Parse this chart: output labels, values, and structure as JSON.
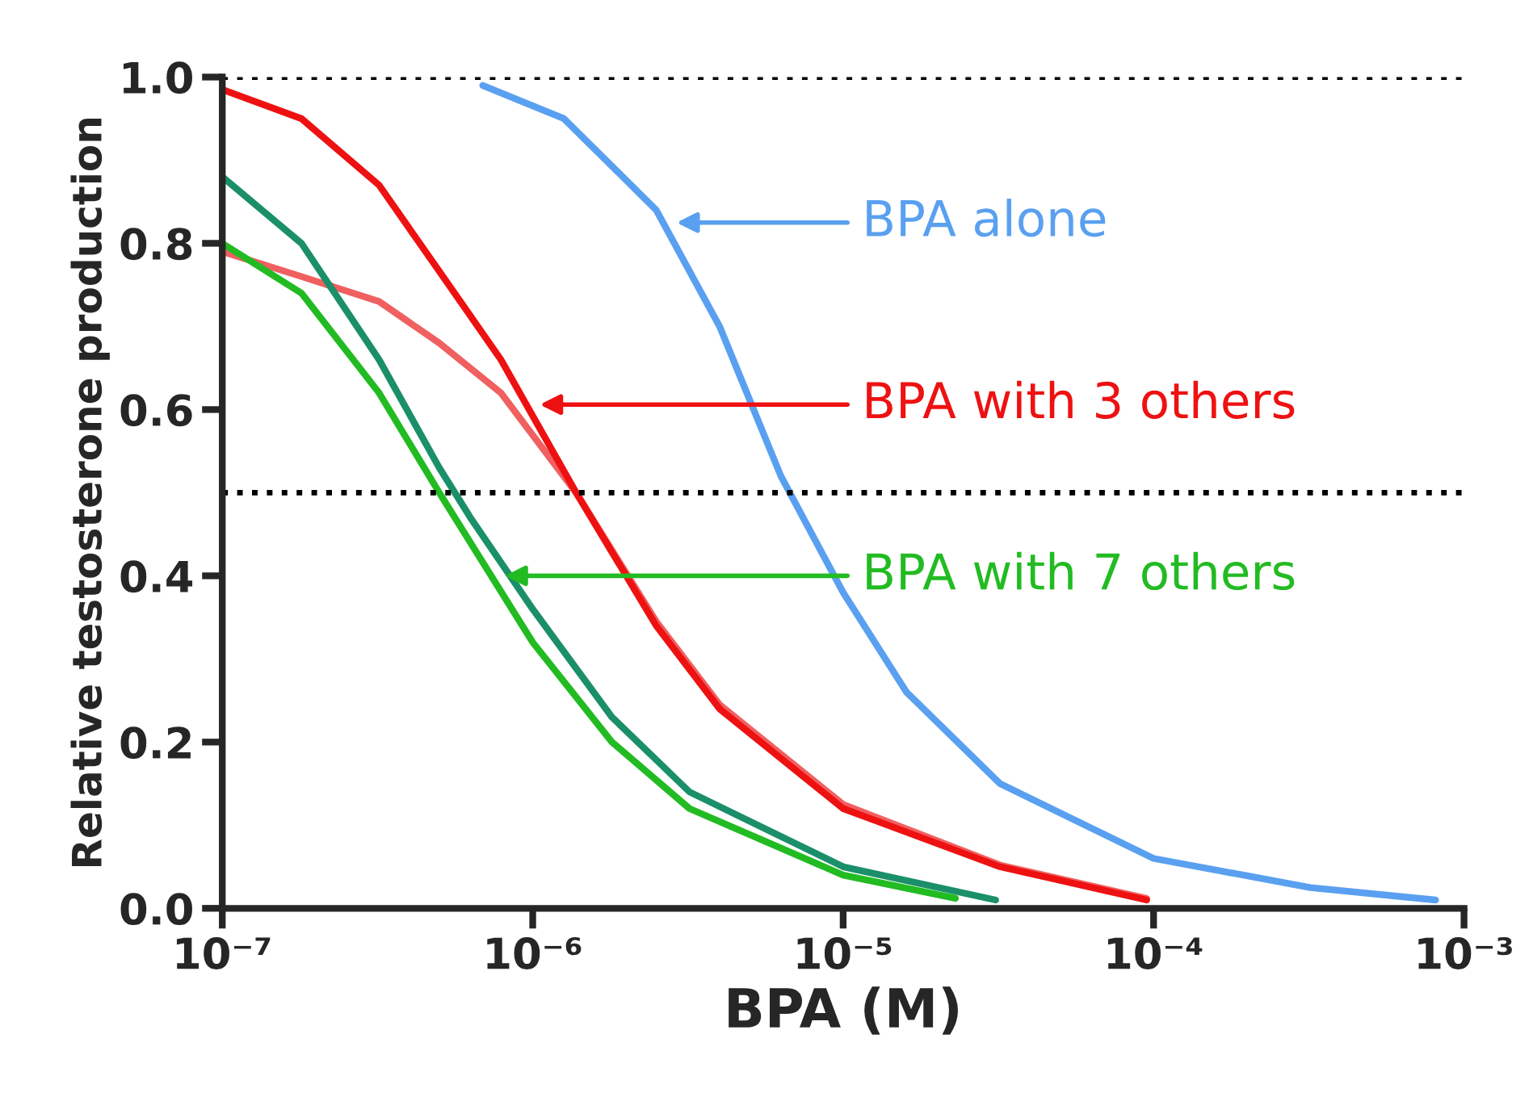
{
  "chart_data": {
    "type": "line",
    "xlabel": "BPA (M)",
    "ylabel": "Relative testosterone production",
    "log": "x",
    "xlim": [
      1e-07,
      0.001
    ],
    "xticks": [
      {
        "value": 1e-07,
        "label": "10⁻⁷"
      },
      {
        "value": 1e-06,
        "label": "10⁻⁶"
      },
      {
        "value": 1e-05,
        "label": "10⁻⁵"
      },
      {
        "value": 0.0001,
        "label": "10⁻⁴"
      },
      {
        "value": 0.001,
        "label": "10⁻³"
      }
    ],
    "ylim": [
      0,
      1.0
    ],
    "yticks": [
      {
        "value": 0,
        "label": "0.0"
      },
      {
        "value": 0.2,
        "label": "0.2"
      },
      {
        "value": 0.4,
        "label": "0.4"
      },
      {
        "value": 0.6,
        "label": "0.6"
      },
      {
        "value": 0.8,
        "label": "0.8"
      },
      {
        "value": 1.0,
        "label": "1.0"
      }
    ],
    "grid": false,
    "legend": "right",
    "marker": "none",
    "line_style": "solid",
    "ref_lines": [
      {
        "axis": "y",
        "value": 1.0,
        "label": null,
        "color": "#000000",
        "line_style": "dotted"
      },
      {
        "axis": "y",
        "value": 0.5,
        "label": null,
        "color": "#000000",
        "line_style": "dotted"
      }
    ],
    "series": [
      {
        "name": "BPA alone",
        "color": "#5aa0f0",
        "x": [
          6.9e-07,
          1.26e-06,
          2.5e-06,
          4e-06,
          6.3e-06,
          1e-05,
          1.6e-05,
          3.2e-05,
          0.0001,
          0.00032,
          0.00081
        ],
        "values": [
          0.99,
          0.95,
          0.84,
          0.7,
          0.52,
          0.38,
          0.26,
          0.15,
          0.06,
          0.025,
          0.01
        ]
      },
      {
        "color": "#f06060",
        "x": [
          1e-07,
          1.8e-07,
          3.2e-07,
          5e-07,
          7.9e-07,
          1.38e-06,
          2.5e-06,
          4e-06,
          1e-05,
          3.2e-05,
          9.5e-05
        ],
        "values": [
          0.79,
          0.76,
          0.73,
          0.68,
          0.62,
          0.5,
          0.345,
          0.245,
          0.125,
          0.052,
          0.012
        ]
      },
      {
        "name": "BPA with 3 others",
        "color": "#ee1111",
        "x": [
          1e-07,
          1.8e-07,
          3.2e-07,
          5.6e-07,
          7.9e-07,
          1.38e-06,
          2.5e-06,
          4e-06,
          1e-05,
          3.2e-05,
          9.5e-05
        ],
        "values": [
          0.985,
          0.95,
          0.87,
          0.74,
          0.66,
          0.5,
          0.34,
          0.24,
          0.12,
          0.05,
          0.01
        ]
      },
      {
        "color": "#1a8f6a",
        "x": [
          1e-07,
          1.8e-07,
          3.2e-07,
          5e-07,
          6.3e-07,
          1e-06,
          1.8e-06,
          3.2e-06,
          1e-05,
          3.1e-05
        ],
        "values": [
          0.88,
          0.8,
          0.66,
          0.53,
          0.47,
          0.36,
          0.23,
          0.14,
          0.05,
          0.01
        ]
      },
      {
        "name": "BPA with 7 others",
        "color": "#22bb22",
        "x": [
          1e-07,
          1.8e-07,
          3.2e-07,
          5e-07,
          1e-06,
          1.8e-06,
          3.2e-06,
          1e-05,
          2.3e-05
        ],
        "values": [
          0.8,
          0.74,
          0.62,
          0.5,
          0.32,
          0.2,
          0.12,
          0.04,
          0.012
        ]
      }
    ]
  }
}
